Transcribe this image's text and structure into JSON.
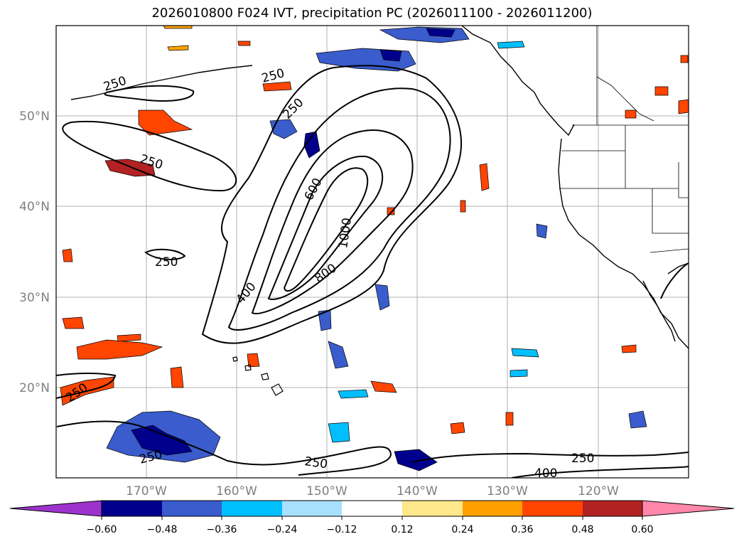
{
  "title": "2026010800 F024 IVT, precipitation PC (2026011100 - 2026011200)",
  "map": {
    "lat_labels": [
      "50°N",
      "40°N",
      "30°N",
      "20°N"
    ],
    "lon_labels": [
      "170°W",
      "160°W",
      "150°W",
      "140°W",
      "130°W",
      "120°W"
    ],
    "contour_labels": [
      "250",
      "250",
      "250",
      "250",
      "250",
      "250",
      "250",
      "250",
      "250",
      "400",
      "400",
      "600",
      "800",
      "1000"
    ],
    "contour_levels": [
      250,
      400,
      600,
      800,
      1000
    ]
  },
  "colorbar": {
    "ticks": [
      "−0.60",
      "−0.48",
      "−0.36",
      "−0.24",
      "−0.12",
      "0.12",
      "0.24",
      "0.36",
      "0.48",
      "0.60"
    ],
    "colors": [
      "#9c33cc",
      "#00008c",
      "#3a5ccc",
      "#00bfff",
      "#a8e0ff",
      "#ffffff",
      "#ffe88c",
      "#ffa000",
      "#ff4500",
      "#b22222",
      "#ff88aa"
    ]
  },
  "colors": {
    "contour": "#000000",
    "grid": "#b0b0b0",
    "neg_strong": "#00008c",
    "neg_mid": "#3a5ccc",
    "neg_weak": "#00bfff",
    "pos_weak": "#ffa000",
    "pos_mid": "#ff4500",
    "pos_strong": "#b22222"
  }
}
